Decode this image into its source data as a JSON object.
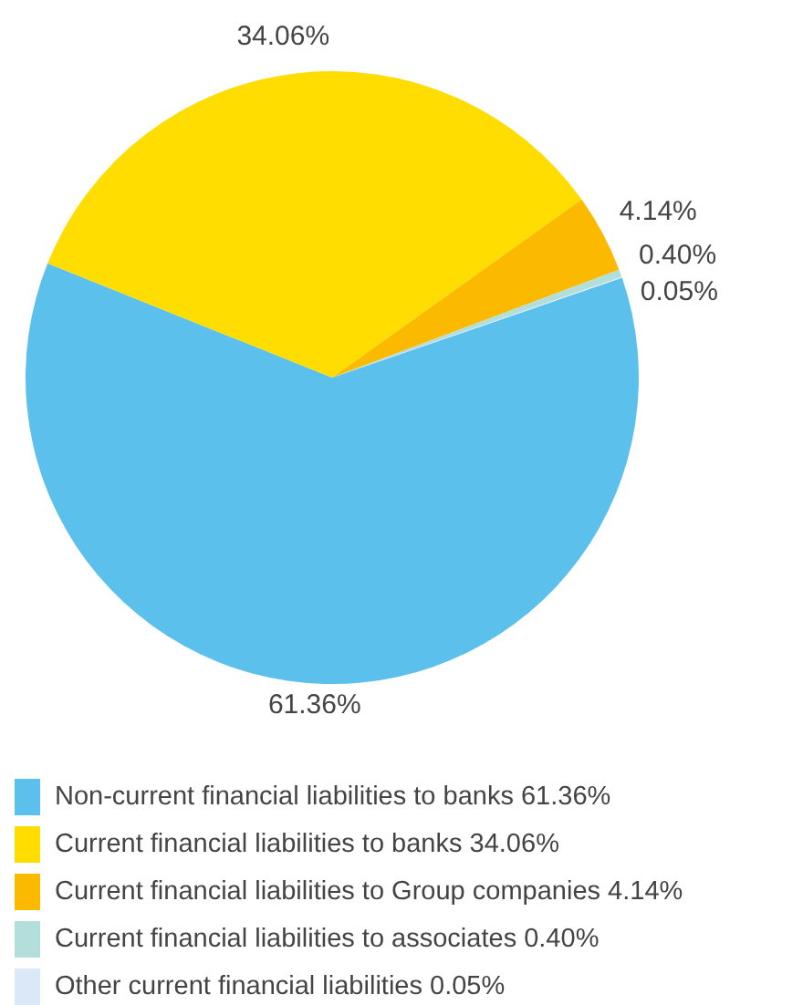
{
  "chart_data": {
    "type": "pie",
    "categories": [
      "Non-current financial liabilities to banks 61.36%",
      "Current financial liabilities to banks 34.06%",
      "Current financial liabilities to Group companies 4.14%",
      "Current financial liabilities to associates 0.40%",
      "Other current financial liabilities 0.05%"
    ],
    "values": [
      61.36,
      34.06,
      4.14,
      0.4,
      0.05
    ],
    "value_labels": [
      "61.36%",
      "34.06%",
      "4.14%",
      "0.40%",
      "0.05%"
    ],
    "colors": [
      "#5bc0eb",
      "#ffdd00",
      "#fbb900",
      "#b2dfdb",
      "#dbe8f8"
    ],
    "legend": "bottom"
  }
}
